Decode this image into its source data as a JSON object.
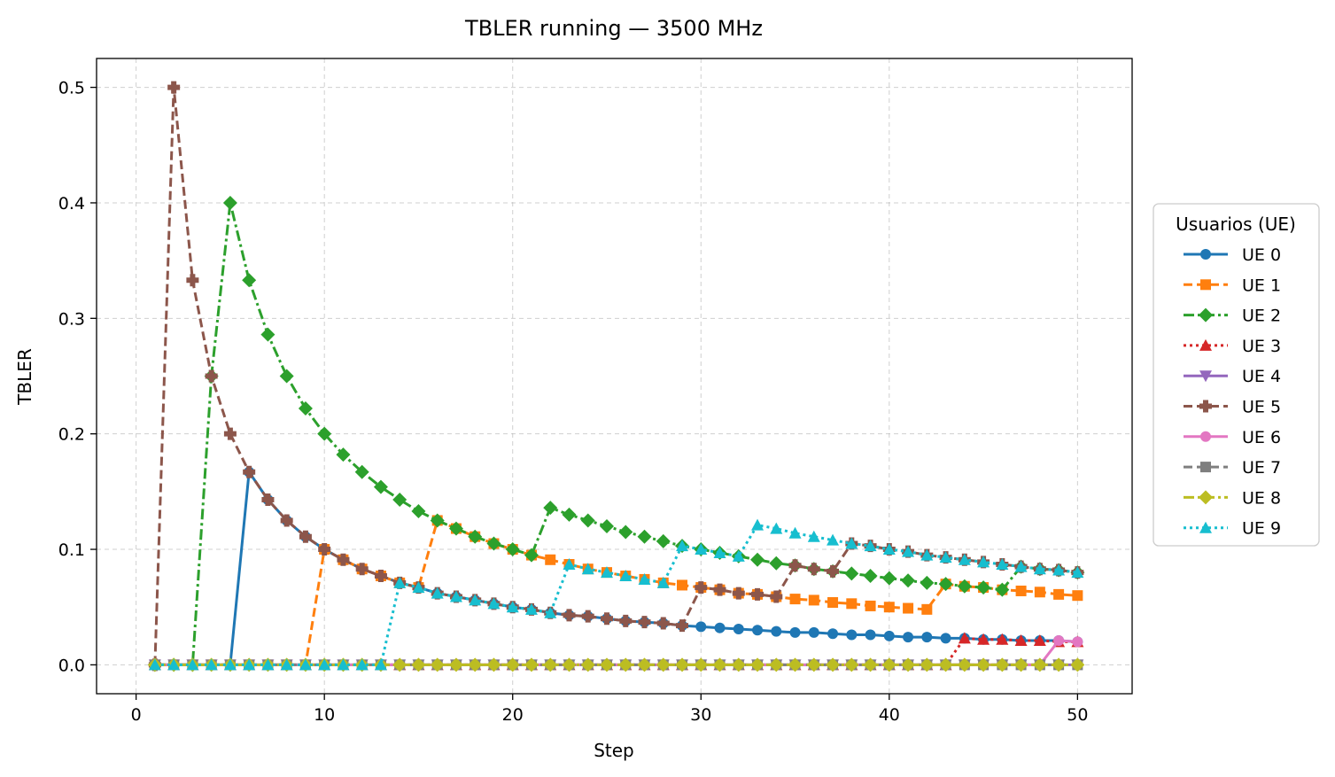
{
  "chart_data": {
    "type": "line",
    "title": "TBLER running — 3500 MHz",
    "xlabel": "Step",
    "ylabel": "TBLER",
    "xlim": [
      -2.1,
      52.9
    ],
    "ylim": [
      -0.025,
      0.525
    ],
    "xticks": [
      "0",
      "10",
      "20",
      "30",
      "40",
      "50"
    ],
    "yticks": [
      "0.0",
      "0.1",
      "0.2",
      "0.3",
      "0.4",
      "0.5"
    ],
    "grid": true,
    "legend_title": "Usuarios (UE)",
    "legend_position": "right",
    "x": [
      1,
      2,
      3,
      4,
      5,
      6,
      7,
      8,
      9,
      10,
      11,
      12,
      13,
      14,
      15,
      16,
      17,
      18,
      19,
      20,
      21,
      22,
      23,
      24,
      25,
      26,
      27,
      28,
      29,
      30,
      31,
      32,
      33,
      34,
      35,
      36,
      37,
      38,
      39,
      40,
      41,
      42,
      43,
      44,
      45,
      46,
      47,
      48,
      49,
      50
    ],
    "series": [
      {
        "name": "UE 0",
        "color": "#1f77b4",
        "marker": "circle",
        "dash": "solid",
        "values": [
          0,
          0,
          0,
          0,
          0,
          0.167,
          0.143,
          0.125,
          0.111,
          0.1,
          0.091,
          0.083,
          0.077,
          0.071,
          0.067,
          0.062,
          0.059,
          0.056,
          0.053,
          0.05,
          0.048,
          0.045,
          0.043,
          0.042,
          0.04,
          0.038,
          0.037,
          0.036,
          0.034,
          0.033,
          0.032,
          0.031,
          0.03,
          0.029,
          0.028,
          0.028,
          0.027,
          0.026,
          0.026,
          0.025,
          0.024,
          0.024,
          0.023,
          0.023,
          0.022,
          0.022,
          0.021,
          0.021,
          0.021,
          0.02
        ]
      },
      {
        "name": "UE 1",
        "color": "#ff7f0e",
        "marker": "square",
        "dash": "dashed",
        "values": [
          0,
          0,
          0,
          0,
          0,
          0,
          0,
          0,
          0,
          0.1,
          0.091,
          0.083,
          0.077,
          0.071,
          0.067,
          0.125,
          0.118,
          0.111,
          0.105,
          0.1,
          0.095,
          0.091,
          0.087,
          0.083,
          0.08,
          0.077,
          0.074,
          0.071,
          0.069,
          0.067,
          0.065,
          0.062,
          0.061,
          0.059,
          0.057,
          0.056,
          0.054,
          0.053,
          0.051,
          0.05,
          0.049,
          0.048,
          0.07,
          0.068,
          0.067,
          0.065,
          0.064,
          0.063,
          0.061,
          0.06
        ]
      },
      {
        "name": "UE 2",
        "color": "#2ca02c",
        "marker": "diamond",
        "dash": "dashdot",
        "values": [
          0,
          0,
          0,
          0.25,
          0.4,
          0.333,
          0.286,
          0.25,
          0.222,
          0.2,
          0.182,
          0.167,
          0.154,
          0.143,
          0.133,
          0.125,
          0.118,
          0.111,
          0.105,
          0.1,
          0.095,
          0.136,
          0.13,
          0.125,
          0.12,
          0.115,
          0.111,
          0.107,
          0.103,
          0.1,
          0.097,
          0.094,
          0.091,
          0.088,
          0.086,
          0.083,
          0.081,
          0.079,
          0.077,
          0.075,
          0.073,
          0.071,
          0.07,
          0.068,
          0.067,
          0.065,
          0.085,
          0.083,
          0.082,
          0.08
        ]
      },
      {
        "name": "UE 3",
        "color": "#d62728",
        "marker": "triangle-up",
        "dash": "dotted",
        "values": [
          0,
          0,
          0,
          0,
          0,
          0,
          0,
          0,
          0,
          0,
          0,
          0,
          0,
          0,
          0,
          0,
          0,
          0,
          0,
          0,
          0,
          0,
          0,
          0,
          0,
          0,
          0,
          0,
          0,
          0,
          0,
          0,
          0,
          0,
          0,
          0,
          0,
          0,
          0,
          0,
          0,
          0,
          0,
          0.023,
          0.022,
          0.022,
          0.021,
          0.021,
          0.02,
          0.02
        ]
      },
      {
        "name": "UE 4",
        "color": "#9467bd",
        "marker": "triangle-down",
        "dash": "solid",
        "values": [
          0,
          0,
          0,
          0,
          0,
          0,
          0,
          0,
          0,
          0,
          0,
          0,
          0,
          0,
          0,
          0,
          0,
          0,
          0,
          0,
          0,
          0,
          0,
          0,
          0,
          0,
          0,
          0,
          0,
          0,
          0,
          0,
          0,
          0,
          0,
          0,
          0,
          0,
          0,
          0,
          0,
          0,
          0,
          0,
          0,
          0,
          0,
          0,
          0,
          0
        ]
      },
      {
        "name": "UE 5",
        "color": "#8c564b",
        "marker": "plus",
        "dash": "dashed",
        "values": [
          0,
          0.5,
          0.333,
          0.25,
          0.2,
          0.167,
          0.143,
          0.125,
          0.111,
          0.1,
          0.091,
          0.083,
          0.077,
          0.071,
          0.067,
          0.062,
          0.059,
          0.056,
          0.053,
          0.05,
          0.048,
          0.045,
          0.043,
          0.042,
          0.04,
          0.038,
          0.037,
          0.036,
          0.034,
          0.067,
          0.065,
          0.062,
          0.061,
          0.059,
          0.086,
          0.083,
          0.081,
          0.105,
          0.103,
          0.1,
          0.098,
          0.095,
          0.093,
          0.091,
          0.089,
          0.087,
          0.085,
          0.083,
          0.082,
          0.08
        ]
      },
      {
        "name": "UE 6",
        "color": "#e377c2",
        "marker": "circle",
        "dash": "solid",
        "values": [
          0,
          0,
          0,
          0,
          0,
          0,
          0,
          0,
          0,
          0,
          0,
          0,
          0,
          0,
          0,
          0,
          0,
          0,
          0,
          0,
          0,
          0,
          0,
          0,
          0,
          0,
          0,
          0,
          0,
          0,
          0,
          0,
          0,
          0,
          0,
          0,
          0,
          0,
          0,
          0,
          0,
          0,
          0,
          0,
          0,
          0,
          0,
          0,
          0.021,
          0.02
        ]
      },
      {
        "name": "UE 7",
        "color": "#7f7f7f",
        "marker": "square",
        "dash": "dashed",
        "values": [
          0,
          0,
          0,
          0,
          0,
          0,
          0,
          0,
          0,
          0,
          0,
          0,
          0,
          0,
          0,
          0,
          0,
          0,
          0,
          0,
          0,
          0,
          0,
          0,
          0,
          0,
          0,
          0,
          0,
          0,
          0,
          0,
          0,
          0,
          0,
          0,
          0,
          0,
          0,
          0,
          0,
          0,
          0,
          0,
          0,
          0,
          0,
          0,
          0,
          0
        ]
      },
      {
        "name": "UE 8",
        "color": "#bcbd22",
        "marker": "diamond",
        "dash": "dashdot",
        "values": [
          0,
          0,
          0,
          0,
          0,
          0,
          0,
          0,
          0,
          0,
          0,
          0,
          0,
          0,
          0,
          0,
          0,
          0,
          0,
          0,
          0,
          0,
          0,
          0,
          0,
          0,
          0,
          0,
          0,
          0,
          0,
          0,
          0,
          0,
          0,
          0,
          0,
          0,
          0,
          0,
          0,
          0,
          0,
          0,
          0,
          0,
          0,
          0,
          0,
          0
        ]
      },
      {
        "name": "UE 9",
        "color": "#17becf",
        "marker": "triangle-up",
        "dash": "dotted",
        "values": [
          0,
          0,
          0,
          0,
          0,
          0,
          0,
          0,
          0,
          0,
          0,
          0,
          0,
          0.071,
          0.067,
          0.062,
          0.059,
          0.056,
          0.053,
          0.05,
          0.048,
          0.045,
          0.087,
          0.083,
          0.08,
          0.077,
          0.074,
          0.071,
          0.103,
          0.1,
          0.097,
          0.094,
          0.121,
          0.118,
          0.114,
          0.111,
          0.108,
          0.105,
          0.103,
          0.1,
          0.098,
          0.095,
          0.093,
          0.091,
          0.089,
          0.087,
          0.085,
          0.083,
          0.082,
          0.08
        ]
      }
    ]
  }
}
